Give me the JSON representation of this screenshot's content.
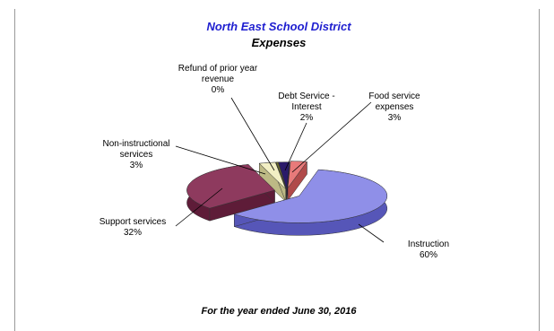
{
  "chart_data": {
    "type": "pie",
    "title": "North East School District",
    "subtitle": "Expenses",
    "footer": "For the year ended June 30, 2016",
    "slices": [
      {
        "label": "Instruction",
        "value": 60,
        "percent": "60%",
        "color": "#8f8fe8",
        "side": "#5656b8",
        "label_lines": [
          "Instruction"
        ]
      },
      {
        "label": "Support services",
        "value": 32,
        "percent": "32%",
        "color": "#8e3a5e",
        "side": "#5e1c38",
        "label_lines": [
          "Support services"
        ]
      },
      {
        "label": "Non-instructional services",
        "value": 3,
        "percent": "3%",
        "color": "#f2efc4",
        "side": "#bdb985",
        "label_lines": [
          "Non-instructional",
          "services"
        ]
      },
      {
        "label": "Refund of prior year revenue",
        "value": 0,
        "percent": "0%",
        "color": "#6d6d30",
        "side": "#44441a",
        "label_lines": [
          "Refund of prior year",
          "revenue"
        ]
      },
      {
        "label": "Debt Service - Interest",
        "value": 2,
        "percent": "2%",
        "color": "#2a1a6a",
        "side": "#120838",
        "label_lines": [
          "Debt Service -",
          "Interest"
        ]
      },
      {
        "label": "Food service expenses",
        "value": 3,
        "percent": "3%",
        "color": "#e87a7a",
        "side": "#b04a4a",
        "label_lines": [
          "Food service",
          "expenses"
        ]
      }
    ],
    "colors": {
      "title": "#1f1fd0",
      "subtitle": "#000000"
    }
  }
}
